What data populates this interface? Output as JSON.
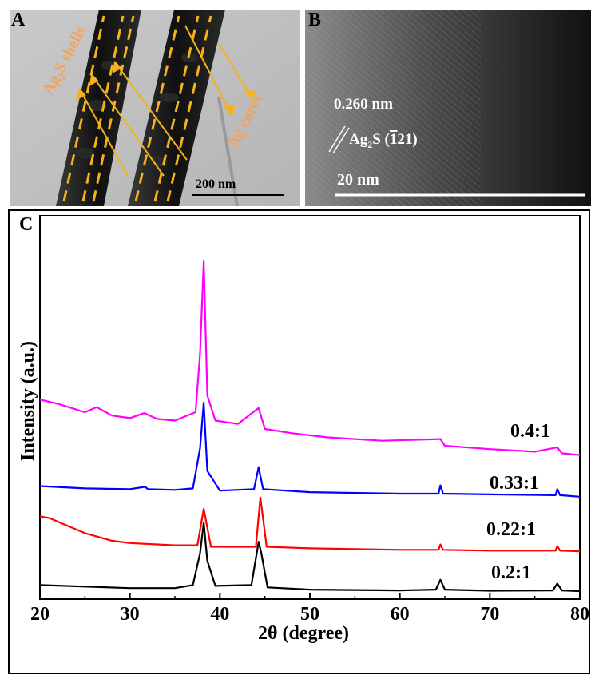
{
  "panel_a": {
    "letter": "A",
    "shell_label_main": "Ag",
    "shell_label_sub": "2",
    "shell_label_tail": "S shells",
    "core_label": "Ag cores",
    "scale_label": "200 nm",
    "colors": {
      "arrow": "#f5b21b",
      "dash": "#f5b21b",
      "label": "#f4a259"
    }
  },
  "panel_b": {
    "letter": "B",
    "spacing_label": "0.260 nm",
    "plane_main": "Ag",
    "plane_sub": "2",
    "plane_mid": "S (",
    "plane_bar": "1",
    "plane_tail": "21)",
    "scale_label": "20 nm"
  },
  "panel_c": {
    "letter": "C"
  },
  "chart_data": {
    "type": "line",
    "xlabel": "2θ (degree)",
    "ylabel": "Intensity (a.u.)",
    "xlim": [
      20,
      80
    ],
    "xticks": [
      20,
      30,
      40,
      50,
      60,
      70,
      80
    ],
    "grid": false,
    "series": [
      {
        "name": "0.2:1",
        "color": "#000000",
        "x": [
          20,
          25,
          30,
          35,
          37,
          37.8,
          38.2,
          38.6,
          39.5,
          43.5,
          44.3,
          44.6,
          45.3,
          50,
          60,
          64,
          64.5,
          65,
          70,
          77,
          77.5,
          78,
          80
        ],
        "y": [
          0.8,
          0.6,
          0.4,
          0.4,
          0.8,
          5,
          9,
          4,
          0.7,
          0.8,
          6.5,
          5,
          0.5,
          0.2,
          0.1,
          0.2,
          1.5,
          0.2,
          0.05,
          0.1,
          1.0,
          0.1,
          0
        ]
      },
      {
        "name": "0.22:1",
        "color": "#ff0000",
        "x": [
          20,
          21,
          23,
          25,
          28,
          30,
          35,
          37.5,
          38.2,
          39,
          44,
          44.5,
          45.2,
          50,
          60,
          64.3,
          64.5,
          64.8,
          70,
          77.3,
          77.5,
          77.8,
          80
        ],
        "y": [
          5,
          4.8,
          3.8,
          2.8,
          1.8,
          1.5,
          1.2,
          1.2,
          6,
          1,
          1.0,
          7.5,
          1,
          0.8,
          0.6,
          0.6,
          1.3,
          0.6,
          0.5,
          0.5,
          1.1,
          0.5,
          0.4
        ]
      },
      {
        "name": "0.33:1",
        "color": "#0000ff",
        "x": [
          20,
          25,
          30,
          31.7,
          32,
          35,
          37,
          37.8,
          38.2,
          38.6,
          40,
          43.8,
          44.3,
          44.8,
          50,
          60,
          64.3,
          64.5,
          64.8,
          70,
          77.3,
          77.5,
          77.8,
          80
        ],
        "y": [
          3,
          2.7,
          2.6,
          2.9,
          2.6,
          2.5,
          2.7,
          8,
          14,
          5,
          2.4,
          2.6,
          5.5,
          2.6,
          2.2,
          2.0,
          2.0,
          3.1,
          2.0,
          1.9,
          1.8,
          2.6,
          1.8,
          1.6
        ]
      },
      {
        "name": "0.4:1",
        "color": "#ff00ff",
        "x": [
          20,
          22,
          25,
          26.3,
          28,
          30,
          31.6,
          33,
          35,
          37.3,
          37.8,
          38.2,
          38.6,
          39.5,
          42,
          44.3,
          45,
          48,
          52,
          58,
          64.5,
          65,
          70,
          75,
          77.5,
          78,
          80
        ],
        "y": [
          9.5,
          9,
          8,
          8.6,
          7.6,
          7.3,
          7.9,
          7.2,
          7.0,
          8.0,
          15,
          26,
          10,
          7.0,
          6.6,
          8.5,
          6.0,
          5.5,
          5.0,
          4.6,
          4.8,
          4.0,
          3.6,
          3.3,
          3.8,
          3.1,
          2.9
        ]
      }
    ],
    "annotations": [
      "0.4:1",
      "0.33:1",
      "0.22:1",
      "0.2:1"
    ]
  }
}
